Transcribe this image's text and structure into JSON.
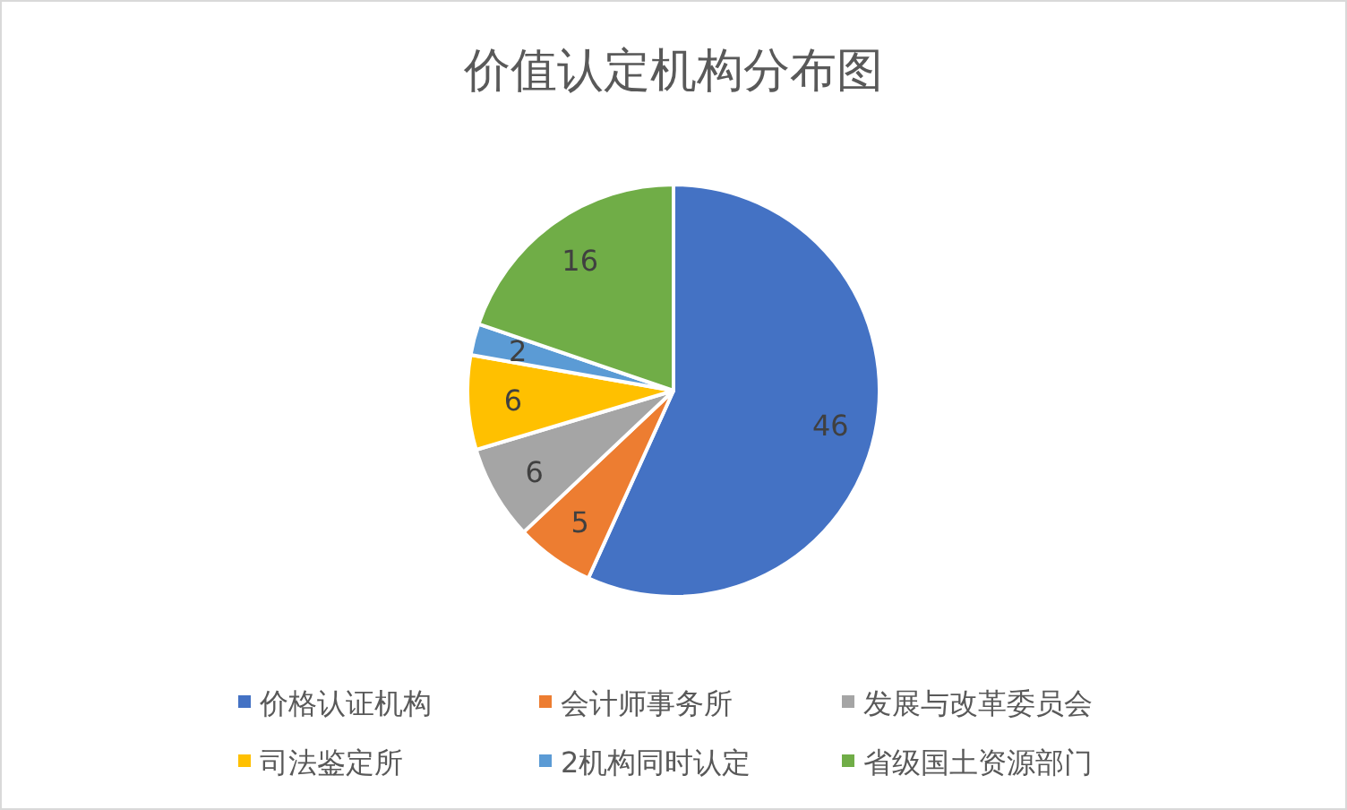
{
  "chart_data": {
    "type": "pie",
    "title": "价值认定机构分布图",
    "categories": [
      "价格认证机构",
      "会计师事务所",
      "发展与改革委员会",
      "司法鉴定所",
      "2机构同时认定",
      "省级国土资源部门"
    ],
    "values": [
      46,
      5,
      6,
      6,
      2,
      16
    ],
    "colors": [
      "#4472c4",
      "#ed7d31",
      "#a5a5a5",
      "#ffc000",
      "#5b9bd5",
      "#70ad47"
    ],
    "data_labels": true,
    "legend": "bottom"
  }
}
